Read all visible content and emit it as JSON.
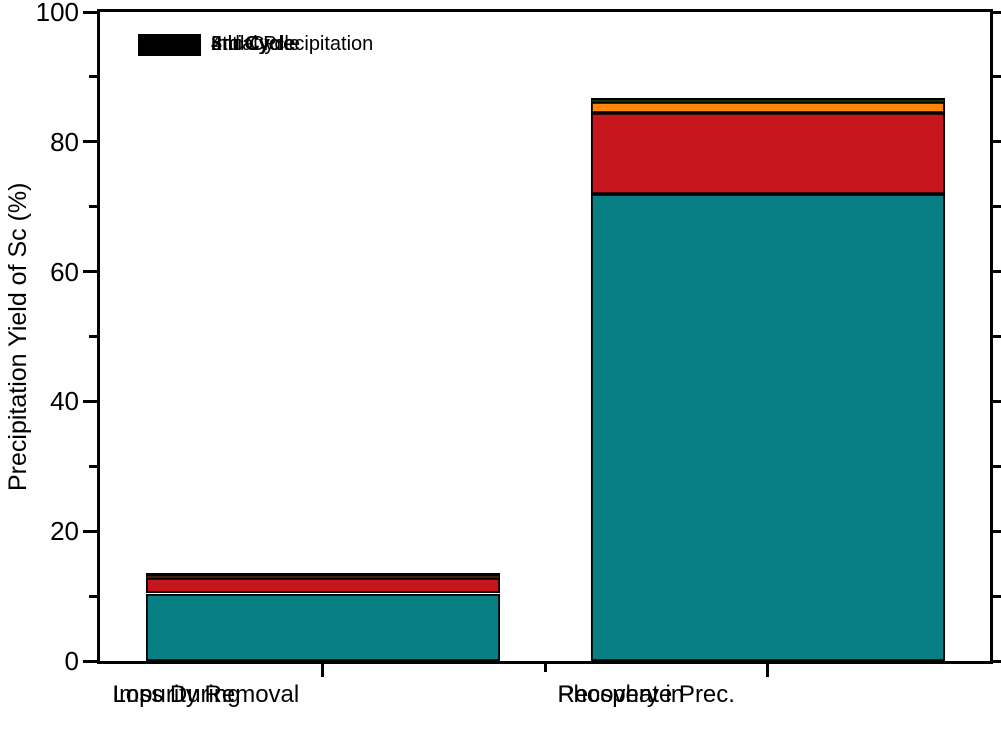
{
  "chart_data": {
    "type": "bar",
    "stacked": true,
    "title": "",
    "ylabel": "Precipitation Yield of Sc (%)",
    "xlabel": "",
    "ylim": [
      0,
      100
    ],
    "y_major_ticks": [
      0,
      20,
      40,
      60,
      80,
      100
    ],
    "y_minor_step": 10,
    "grid": false,
    "legend_position": "top-left-inside",
    "axis_color": "#000000",
    "categories": [
      [
        "Loss During",
        "Impurity Removal"
      ],
      [
        "Recovery in",
        "Phosphate Prec."
      ]
    ],
    "series": [
      {
        "name": "Initial Precipitation",
        "color": "#077F83",
        "values": [
          10.4,
          72.0
        ]
      },
      {
        "name": "2nd Cycle",
        "color": "#C4161C",
        "values": [
          2.4,
          12.5
        ]
      },
      {
        "name": "3rd Cycle",
        "color": "#FF8609",
        "values": [
          0.3,
          1.6
        ]
      },
      {
        "name": "4th Cycle",
        "color": "#54B92F",
        "values": [
          0.2,
          0.4
        ]
      },
      {
        "name": "5th Cycle",
        "color": "#000000",
        "values": [
          0.3,
          0.3
        ]
      }
    ],
    "stack_totals": [
      13.6,
      86.8
    ]
  }
}
